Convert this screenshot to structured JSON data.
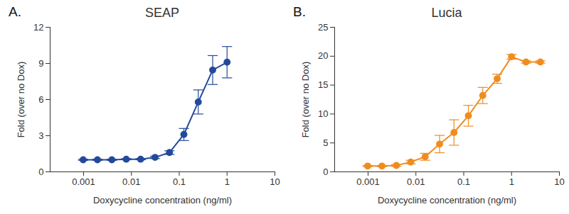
{
  "chart_data": [
    {
      "type": "line",
      "annotations": [
        "A."
      ],
      "title": "SEAP",
      "x_label": "Doxycycline concentration (ng/ml)",
      "y_label": "Fold (over no Dox)",
      "x": [
        0.00098,
        0.00195,
        0.0039,
        0.0078,
        0.0156,
        0.03125,
        0.0625,
        0.125,
        0.25,
        0.5,
        1
      ],
      "values": [
        1.0,
        1.0,
        1.0,
        1.05,
        1.05,
        1.2,
        1.6,
        3.1,
        5.8,
        8.45,
        9.1
      ],
      "errors": [
        0.05,
        0.05,
        0.05,
        0.05,
        0.05,
        0.1,
        0.15,
        0.5,
        1.0,
        1.2,
        1.3
      ],
      "color": "#234a9a",
      "marker": "circle",
      "line_style": "solid",
      "log": "x",
      "xlim": [
        0.0002,
        10
      ],
      "xticks": [
        0.001,
        0.01,
        0.1,
        1,
        10
      ],
      "ylim": [
        0,
        12
      ],
      "yticks": [
        0,
        3,
        6,
        9,
        12
      ],
      "grid": false
    },
    {
      "type": "line",
      "annotations": [
        "B."
      ],
      "title": "Lucia",
      "x_label": "Doxycycline concentration (ng/ml)",
      "y_label": "Fold (over no Dox)",
      "x": [
        0.00098,
        0.00195,
        0.0039,
        0.0078,
        0.0156,
        0.03125,
        0.0625,
        0.125,
        0.25,
        0.5,
        1,
        2,
        4
      ],
      "values": [
        1.0,
        1.0,
        1.1,
        1.7,
        2.6,
        4.8,
        6.8,
        9.7,
        13.2,
        16.1,
        19.9,
        19.0,
        19.0
      ],
      "errors": [
        0.1,
        0.1,
        0.15,
        0.3,
        0.6,
        1.5,
        2.2,
        1.8,
        1.4,
        0.8,
        0.4,
        0.2,
        0.2
      ],
      "color": "#f08c1e",
      "marker": "circle",
      "line_style": "solid",
      "log": "x",
      "xlim": [
        0.0002,
        10
      ],
      "xticks": [
        0.001,
        0.01,
        0.1,
        1,
        10
      ],
      "ylim": [
        0,
        25
      ],
      "yticks": [
        0,
        5,
        10,
        15,
        20,
        25
      ],
      "grid": false
    }
  ]
}
